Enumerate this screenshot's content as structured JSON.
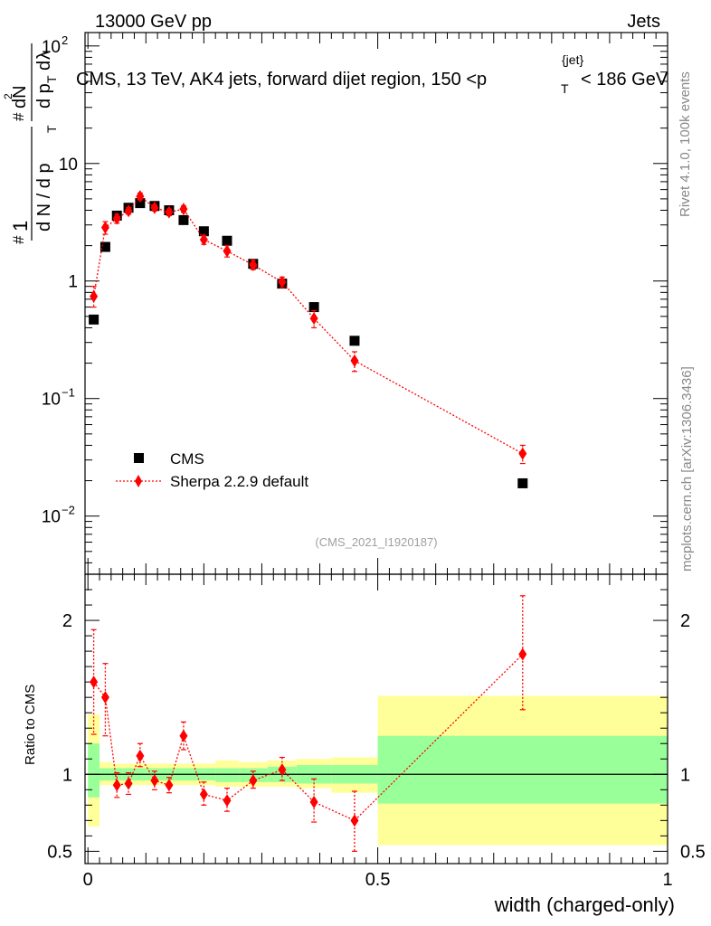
{
  "header": {
    "left": "13000 GeV pp",
    "right": "Jets"
  },
  "chart_data": [
    {
      "type": "scatter",
      "panel": "main",
      "title": "CMS, 13 TeV, AK4 jets, forward dijet region, 150 <p_T^{jet}< 186 GeV",
      "title_parts": {
        "lead": "CMS, 13 TeV, AK4 jets, forward dijet region, 150 <p",
        "sub": "T",
        "sup": "{jet}",
        "tail": "< 186 GeV"
      },
      "ylabel": "1/(dN/dp_T) d^2N/(dp_T dλ)",
      "ylabel_parts": {
        "p1": "d N / d p",
        "p2": "d p",
        "p3": "d",
        "lambda": "λ",
        "num": "dN",
        "one": "1",
        "hash": "#",
        "two": "2",
        "T": "T"
      },
      "yscale": "log",
      "ylim": [
        0.0032,
        130
      ],
      "xlim": [
        -0.005,
        1.0
      ],
      "y_ticks": [
        {
          "value": 100,
          "base": "10",
          "exp": "2"
        },
        {
          "value": 10,
          "label": "10"
        },
        {
          "value": 1,
          "label": "1"
        },
        {
          "value": 0.1,
          "base": "10",
          "exp": "−1"
        },
        {
          "value": 0.01,
          "base": "10",
          "exp": "−2"
        }
      ],
      "legend": {
        "placement": "lower-left",
        "entries": [
          "CMS",
          "Sherpa 2.2.9 default"
        ]
      },
      "watermark": "(CMS_2021_I1920187)",
      "side_label_top": "Rivet 4.1.0,  100k events",
      "side_label_bottom": "mcplots.cern.ch [arXiv:1306.3436]",
      "colors": {
        "data": "#000000",
        "mc": "#ff0000"
      },
      "series": [
        {
          "name": "CMS",
          "marker": "square",
          "x": [
            0.01,
            0.03,
            0.05,
            0.07,
            0.09,
            0.115,
            0.14,
            0.165,
            0.2,
            0.24,
            0.285,
            0.335,
            0.39,
            0.46,
            0.75
          ],
          "y": [
            0.47,
            1.95,
            3.6,
            4.2,
            4.6,
            4.35,
            4.0,
            3.3,
            2.65,
            2.2,
            1.4,
            0.95,
            0.6,
            0.31,
            0.019
          ]
        },
        {
          "name": "Sherpa 2.2.9 default",
          "marker": "diamond",
          "line": "dotted",
          "x": [
            0.01,
            0.03,
            0.05,
            0.07,
            0.09,
            0.115,
            0.14,
            0.165,
            0.2,
            0.24,
            0.285,
            0.335,
            0.39,
            0.46,
            0.75
          ],
          "y": [
            0.74,
            2.85,
            3.4,
            3.95,
            5.25,
            4.2,
            3.85,
            4.1,
            2.25,
            1.8,
            1.37,
            0.98,
            0.48,
            0.21,
            0.034
          ],
          "err_lo": [
            0.6,
            2.5,
            3.1,
            3.7,
            4.9,
            3.95,
            3.6,
            3.85,
            2.05,
            1.6,
            1.25,
            0.88,
            0.4,
            0.17,
            0.028
          ],
          "err_hi": [
            0.9,
            3.2,
            3.7,
            4.2,
            5.6,
            4.45,
            4.1,
            4.35,
            2.45,
            2.0,
            1.5,
            1.08,
            0.56,
            0.25,
            0.04
          ]
        }
      ]
    },
    {
      "type": "scatter",
      "panel": "ratio",
      "ylabel": "Ratio to CMS",
      "xlabel": "width (charged-only)",
      "ylim": [
        0.42,
        2.3
      ],
      "xlim": [
        -0.005,
        1.0
      ],
      "y_ticks": [
        {
          "value": 2,
          "label": "2"
        },
        {
          "value": 1,
          "label": "1"
        },
        {
          "value": 0.5,
          "label": "0.5"
        }
      ],
      "x_ticks": [
        {
          "value": 0,
          "label": "0"
        },
        {
          "value": 0.5,
          "label": "0.5"
        },
        {
          "value": 1,
          "label": "1"
        }
      ],
      "colors": {
        "band_outer": "#ffff99",
        "band_inner": "#99ff99"
      },
      "bands": [
        {
          "x0": 0.0,
          "x1": 0.02,
          "inner": [
            0.85,
            1.2
          ],
          "outer": [
            0.66,
            1.39
          ]
        },
        {
          "x0": 0.02,
          "x1": 0.04,
          "inner": [
            0.96,
            1.04
          ],
          "outer": [
            0.93,
            1.08
          ]
        },
        {
          "x0": 0.04,
          "x1": 0.06,
          "inner": [
            0.96,
            1.04
          ],
          "outer": [
            0.93,
            1.07
          ]
        },
        {
          "x0": 0.06,
          "x1": 0.08,
          "inner": [
            0.96,
            1.04
          ],
          "outer": [
            0.93,
            1.07
          ]
        },
        {
          "x0": 0.08,
          "x1": 0.1,
          "inner": [
            0.96,
            1.04
          ],
          "outer": [
            0.93,
            1.07
          ]
        },
        {
          "x0": 0.1,
          "x1": 0.13,
          "inner": [
            0.96,
            1.04
          ],
          "outer": [
            0.93,
            1.07
          ]
        },
        {
          "x0": 0.13,
          "x1": 0.15,
          "inner": [
            0.96,
            1.04
          ],
          "outer": [
            0.93,
            1.07
          ]
        },
        {
          "x0": 0.15,
          "x1": 0.18,
          "inner": [
            0.96,
            1.04
          ],
          "outer": [
            0.93,
            1.07
          ]
        },
        {
          "x0": 0.18,
          "x1": 0.22,
          "inner": [
            0.96,
            1.04
          ],
          "outer": [
            0.93,
            1.07
          ]
        },
        {
          "x0": 0.22,
          "x1": 0.26,
          "inner": [
            0.95,
            1.04
          ],
          "outer": [
            0.92,
            1.09
          ]
        },
        {
          "x0": 0.26,
          "x1": 0.31,
          "inner": [
            0.95,
            1.04
          ],
          "outer": [
            0.92,
            1.08
          ]
        },
        {
          "x0": 0.31,
          "x1": 0.36,
          "inner": [
            0.95,
            1.05
          ],
          "outer": [
            0.92,
            1.09
          ]
        },
        {
          "x0": 0.36,
          "x1": 0.42,
          "inner": [
            0.94,
            1.06
          ],
          "outer": [
            0.91,
            1.1
          ]
        },
        {
          "x0": 0.42,
          "x1": 0.5,
          "inner": [
            0.94,
            1.06
          ],
          "outer": [
            0.88,
            1.11
          ]
        },
        {
          "x0": 0.5,
          "x1": 1.0,
          "inner": [
            0.81,
            1.25
          ],
          "outer": [
            0.54,
            1.51
          ]
        }
      ],
      "series": [
        {
          "name": "Sherpa 2.2.9 default / CMS",
          "marker": "diamond",
          "line": "dotted",
          "x": [
            0.01,
            0.03,
            0.05,
            0.07,
            0.09,
            0.115,
            0.14,
            0.165,
            0.2,
            0.24,
            0.285,
            0.335,
            0.39,
            0.46,
            0.75
          ],
          "y": [
            1.6,
            1.5,
            0.93,
            0.94,
            1.12,
            0.96,
            0.93,
            1.25,
            0.87,
            0.83,
            0.96,
            1.03,
            0.82,
            0.7,
            1.78
          ],
          "err_lo": [
            1.26,
            1.25,
            0.85,
            0.87,
            1.05,
            0.9,
            0.88,
            1.16,
            0.8,
            0.76,
            0.91,
            0.96,
            0.69,
            0.5,
            1.42
          ],
          "err_hi": [
            1.94,
            1.72,
            1.01,
            1.01,
            1.2,
            1.02,
            0.98,
            1.34,
            0.95,
            0.91,
            1.02,
            1.11,
            0.97,
            0.89,
            2.16
          ]
        }
      ]
    }
  ]
}
